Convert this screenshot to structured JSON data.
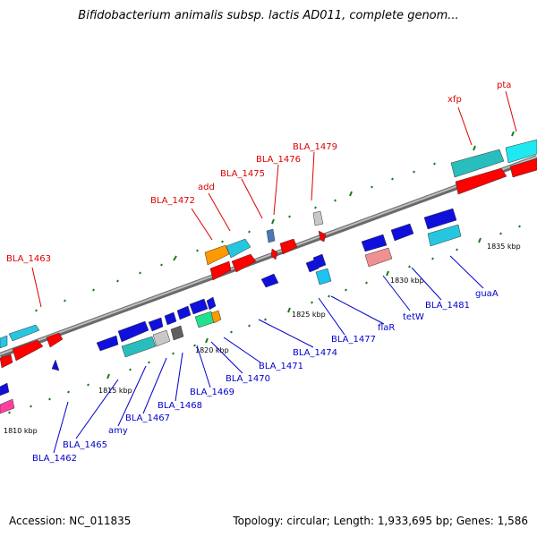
{
  "title": "Bifidobacterium animalis subsp. lactis AD011, complete genom...",
  "footer": {
    "accession": "Accession: NC_011835",
    "summary": "Topology: circular; Length: 1,933,695 bp; Genes: 1,586"
  },
  "colors": {
    "backbone": "#808080",
    "forward_label": "#dd0000",
    "reverse_label": "#0000cc",
    "tick": "#1a7a1a"
  },
  "kbp_ticks": [
    "1810 kbp",
    "1815 kbp",
    "1820 kbp",
    "1825 kbp",
    "1830 kbp",
    "1835 kbp"
  ],
  "forward_labels": [
    "BLA_1463",
    "BLA_1472",
    "add",
    "BLA_1475",
    "BLA_1476",
    "BLA_1479",
    "xfp",
    "pta"
  ],
  "reverse_labels": [
    "BLA_1462",
    "BLA_1465",
    "amy",
    "BLA_1467",
    "BLA_1468",
    "BLA_1469",
    "BLA_1470",
    "BLA_1471",
    "BLA_1474",
    "BLA_1477",
    "flaR",
    "tetW",
    "BLA_1481",
    "guaA"
  ]
}
